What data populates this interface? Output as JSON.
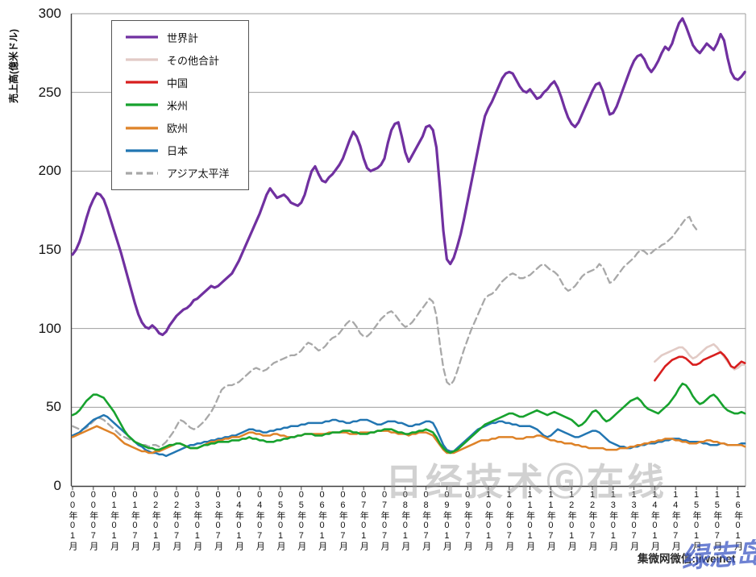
{
  "y_axis": {
    "label": "売上高(億米ドル)",
    "ticks": [
      0,
      50,
      100,
      150,
      200,
      250,
      300
    ]
  },
  "x_axis": {
    "labels": [
      "00年01月",
      "00年07月",
      "01年01月",
      "01年07月",
      "02年01月",
      "02年07月",
      "03年01月",
      "03年07月",
      "04年01月",
      "04年07月",
      "05年01月",
      "05年07月",
      "06年01月",
      "06年07月",
      "07年01月",
      "07年07月",
      "08年01月",
      "08年07月",
      "09年01月",
      "09年07月",
      "10年01月",
      "10年07月",
      "11年01月",
      "11年07月",
      "12年01月",
      "12年07月",
      "13年01月",
      "13年07月",
      "14年01月",
      "14年07月",
      "15年01月",
      "15年07月",
      "16年01月"
    ]
  },
  "legend": [
    {
      "label": "世界計",
      "color": "#7030A0",
      "dashed": false
    },
    {
      "label": "その他合計",
      "color": "#E2CBC6",
      "dashed": false
    },
    {
      "label": "中国",
      "color": "#D81E1E",
      "dashed": false
    },
    {
      "label": "米州",
      "color": "#17A22E",
      "dashed": false
    },
    {
      "label": "欧州",
      "color": "#DE8227",
      "dashed": false
    },
    {
      "label": "日本",
      "color": "#2276B2",
      "dashed": false
    },
    {
      "label": "アジア太平洋",
      "color": "#A8A8A8",
      "dashed": true
    }
  ],
  "watermarks": {
    "center": "日经技术Ⓖ在线",
    "bottom_right": "集微网微信:jiweinet",
    "stamp": "绿志岛"
  },
  "chart_data": {
    "type": "line",
    "x_start": "2000-01",
    "x_interval": "month",
    "x_end": "2016-03",
    "ylabel": "売上高(億米ドル)",
    "ylim": [
      0,
      300
    ],
    "grid": true,
    "legend_position": "top-left",
    "series": [
      {
        "name": "アジア太平洋",
        "color": "#A8A8A8",
        "dashed": true,
        "width": 2.3,
        "start_index": 0,
        "values": [
          38,
          37,
          36,
          36,
          37,
          39,
          41,
          43,
          43,
          42,
          40,
          38,
          36,
          34,
          32,
          31,
          30,
          29,
          28,
          27,
          26,
          26,
          25,
          26,
          26,
          25,
          26,
          28,
          31,
          34,
          38,
          42,
          41,
          39,
          37,
          36,
          37,
          39,
          41,
          44,
          47,
          51,
          56,
          61,
          63,
          64,
          64,
          65,
          66,
          68,
          70,
          72,
          74,
          75,
          74,
          73,
          74,
          76,
          78,
          79,
          80,
          81,
          82,
          83,
          83,
          84,
          86,
          89,
          91,
          90,
          88,
          86,
          87,
          89,
          92,
          94,
          95,
          97,
          100,
          103,
          105,
          104,
          101,
          97,
          95,
          95,
          97,
          100,
          103,
          106,
          108,
          110,
          111,
          109,
          106,
          103,
          101,
          102,
          104,
          107,
          110,
          113,
          116,
          119,
          117,
          108,
          90,
          75,
          66,
          64,
          67,
          73,
          80,
          87,
          93,
          99,
          104,
          109,
          114,
          119,
          121,
          122,
          124,
          127,
          130,
          132,
          134,
          135,
          134,
          132,
          132,
          133,
          134,
          136,
          138,
          140,
          141,
          139,
          137,
          136,
          134,
          130,
          126,
          124,
          125,
          127,
          130,
          133,
          135,
          136,
          137,
          138,
          141,
          139,
          134,
          129,
          130,
          133,
          136,
          139,
          141,
          143,
          145,
          148,
          150,
          149,
          147,
          148,
          150,
          151,
          153,
          154,
          156,
          158,
          161,
          164,
          167,
          170,
          171,
          166,
          163
        ]
      },
      {
        "name": "その他合計",
        "color": "#E2CBC6",
        "dashed": false,
        "width": 2.6,
        "start_index": 168,
        "values": [
          79,
          81,
          83,
          84,
          85,
          86,
          87,
          88,
          88,
          86,
          83,
          81,
          82,
          84,
          86,
          88,
          89,
          90,
          88,
          85,
          82,
          79,
          76,
          74,
          75,
          77,
          77
        ]
      },
      {
        "name": "日本",
        "color": "#2276B2",
        "dashed": false,
        "width": 2.5,
        "start_index": 0,
        "values": [
          32,
          33,
          34,
          36,
          38,
          40,
          42,
          43,
          44,
          45,
          44,
          42,
          40,
          38,
          36,
          34,
          32,
          30,
          28,
          26,
          25,
          23,
          22,
          21,
          21,
          20,
          20,
          19,
          20,
          21,
          22,
          23,
          24,
          25,
          26,
          26,
          27,
          27,
          28,
          28,
          29,
          29,
          30,
          30,
          31,
          31,
          32,
          32,
          33,
          34,
          35,
          36,
          36,
          35,
          35,
          34,
          34,
          35,
          35,
          36,
          36,
          37,
          37,
          38,
          38,
          38,
          39,
          39,
          40,
          40,
          40,
          40,
          40,
          41,
          41,
          42,
          42,
          41,
          41,
          40,
          40,
          41,
          41,
          42,
          42,
          42,
          41,
          40,
          39,
          39,
          40,
          41,
          41,
          41,
          40,
          40,
          39,
          38,
          38,
          39,
          39,
          40,
          41,
          41,
          40,
          36,
          31,
          26,
          23,
          22,
          22,
          24,
          26,
          28,
          30,
          32,
          34,
          36,
          37,
          38,
          39,
          40,
          40,
          41,
          41,
          40,
          40,
          39,
          39,
          38,
          38,
          38,
          38,
          37,
          36,
          34,
          32,
          31,
          32,
          34,
          36,
          35,
          34,
          33,
          32,
          31,
          31,
          32,
          33,
          34,
          35,
          35,
          34,
          32,
          30,
          28,
          27,
          26,
          25,
          25,
          24,
          24,
          25,
          25,
          26,
          26,
          27,
          27,
          27,
          28,
          28,
          29,
          29,
          30,
          30,
          30,
          29,
          29,
          28,
          28,
          28,
          28,
          27,
          27,
          26,
          26,
          26,
          27,
          27,
          26,
          26,
          26,
          26,
          27,
          27
        ]
      },
      {
        "name": "欧州",
        "color": "#DE8227",
        "dashed": false,
        "width": 2.5,
        "start_index": 0,
        "values": [
          31,
          32,
          33,
          34,
          35,
          36,
          37,
          38,
          37,
          36,
          35,
          34,
          33,
          31,
          29,
          27,
          26,
          25,
          24,
          23,
          22,
          22,
          21,
          21,
          22,
          22,
          23,
          24,
          25,
          26,
          27,
          27,
          26,
          25,
          24,
          24,
          24,
          25,
          26,
          27,
          28,
          28,
          29,
          29,
          30,
          30,
          31,
          31,
          31,
          32,
          33,
          34,
          34,
          33,
          33,
          32,
          32,
          32,
          33,
          33,
          32,
          32,
          31,
          31,
          31,
          32,
          32,
          33,
          33,
          33,
          33,
          33,
          33,
          33,
          34,
          34,
          34,
          34,
          34,
          34,
          33,
          33,
          33,
          34,
          34,
          34,
          34,
          34,
          35,
          35,
          35,
          35,
          34,
          34,
          33,
          33,
          33,
          32,
          33,
          33,
          34,
          34,
          34,
          33,
          32,
          29,
          26,
          23,
          21,
          21,
          21,
          22,
          23,
          24,
          25,
          26,
          27,
          28,
          29,
          29,
          29,
          30,
          30,
          31,
          31,
          31,
          31,
          31,
          30,
          30,
          30,
          31,
          31,
          31,
          32,
          32,
          31,
          30,
          29,
          29,
          28,
          28,
          27,
          27,
          27,
          26,
          26,
          25,
          25,
          24,
          24,
          24,
          24,
          24,
          23,
          23,
          23,
          23,
          24,
          24,
          24,
          25,
          25,
          26,
          26,
          27,
          27,
          28,
          28,
          29,
          29,
          30,
          30,
          30,
          29,
          29,
          28,
          28,
          27,
          27,
          27,
          28,
          28,
          29,
          29,
          28,
          28,
          27,
          27,
          26,
          26,
          26,
          26,
          26,
          25
        ]
      },
      {
        "name": "米州",
        "color": "#17A22E",
        "dashed": false,
        "width": 2.6,
        "start_index": 0,
        "values": [
          45,
          46,
          48,
          51,
          54,
          56,
          58,
          58,
          57,
          56,
          53,
          50,
          47,
          43,
          39,
          35,
          32,
          30,
          28,
          27,
          26,
          25,
          24,
          24,
          23,
          23,
          24,
          25,
          26,
          26,
          27,
          27,
          26,
          25,
          24,
          24,
          24,
          25,
          26,
          26,
          27,
          27,
          28,
          28,
          28,
          28,
          29,
          29,
          29,
          30,
          30,
          31,
          30,
          30,
          29,
          29,
          28,
          28,
          28,
          29,
          29,
          30,
          30,
          31,
          31,
          32,
          32,
          33,
          33,
          33,
          32,
          32,
          32,
          33,
          33,
          34,
          34,
          34,
          35,
          35,
          35,
          34,
          34,
          33,
          33,
          33,
          34,
          34,
          35,
          35,
          36,
          36,
          36,
          35,
          34,
          34,
          33,
          33,
          34,
          34,
          35,
          35,
          36,
          35,
          34,
          31,
          27,
          24,
          22,
          21,
          22,
          23,
          25,
          27,
          29,
          31,
          33,
          35,
          37,
          39,
          40,
          41,
          42,
          43,
          44,
          45,
          46,
          46,
          45,
          44,
          44,
          45,
          46,
          47,
          48,
          47,
          46,
          45,
          46,
          47,
          46,
          45,
          44,
          43,
          42,
          40,
          38,
          39,
          41,
          44,
          47,
          48,
          46,
          43,
          41,
          42,
          44,
          46,
          48,
          50,
          52,
          54,
          55,
          56,
          54,
          51,
          49,
          48,
          47,
          46,
          48,
          50,
          52,
          55,
          58,
          62,
          65,
          64,
          61,
          57,
          54,
          52,
          53,
          55,
          57,
          58,
          56,
          53,
          50,
          48,
          47,
          46,
          46,
          47,
          46
        ]
      },
      {
        "name": "中国",
        "color": "#D81E1E",
        "dashed": false,
        "width": 2.6,
        "start_index": 168,
        "values": [
          67,
          70,
          73,
          76,
          78,
          80,
          81,
          82,
          82,
          81,
          79,
          77,
          77,
          78,
          80,
          81,
          82,
          83,
          84,
          85,
          83,
          80,
          76,
          75,
          77,
          79,
          78
        ]
      },
      {
        "name": "世界計",
        "color": "#7030A0",
        "dashed": false,
        "width": 3.2,
        "start_index": 0,
        "values": [
          147,
          150,
          155,
          162,
          170,
          177,
          182,
          186,
          185,
          182,
          176,
          169,
          162,
          155,
          148,
          140,
          132,
          124,
          116,
          109,
          104,
          101,
          100,
          102,
          100,
          97,
          96,
          98,
          102,
          105,
          108,
          110,
          112,
          113,
          115,
          118,
          119,
          121,
          123,
          125,
          127,
          126,
          127,
          129,
          131,
          133,
          135,
          139,
          143,
          148,
          153,
          158,
          163,
          168,
          173,
          179,
          185,
          189,
          186,
          183,
          184,
          185,
          183,
          180,
          179,
          178,
          180,
          185,
          193,
          200,
          203,
          198,
          194,
          193,
          196,
          198,
          201,
          204,
          208,
          214,
          220,
          225,
          222,
          216,
          208,
          202,
          200,
          201,
          202,
          204,
          208,
          218,
          226,
          230,
          231,
          222,
          212,
          206,
          210,
          214,
          218,
          222,
          228,
          229,
          226,
          215,
          190,
          162,
          144,
          141,
          145,
          152,
          160,
          170,
          181,
          192,
          203,
          214,
          225,
          235,
          240,
          244,
          249,
          254,
          259,
          262,
          263,
          262,
          258,
          254,
          251,
          250,
          252,
          249,
          246,
          247,
          250,
          252,
          255,
          257,
          253,
          247,
          240,
          234,
          230,
          228,
          231,
          236,
          241,
          246,
          251,
          255,
          256,
          251,
          243,
          236,
          237,
          241,
          247,
          253,
          259,
          265,
          270,
          273,
          274,
          271,
          266,
          263,
          266,
          270,
          275,
          279,
          277,
          281,
          288,
          294,
          297,
          292,
          286,
          280,
          277,
          275,
          278,
          281,
          279,
          277,
          281,
          287,
          283,
          272,
          263,
          259,
          258,
          260,
          263
        ]
      }
    ]
  }
}
